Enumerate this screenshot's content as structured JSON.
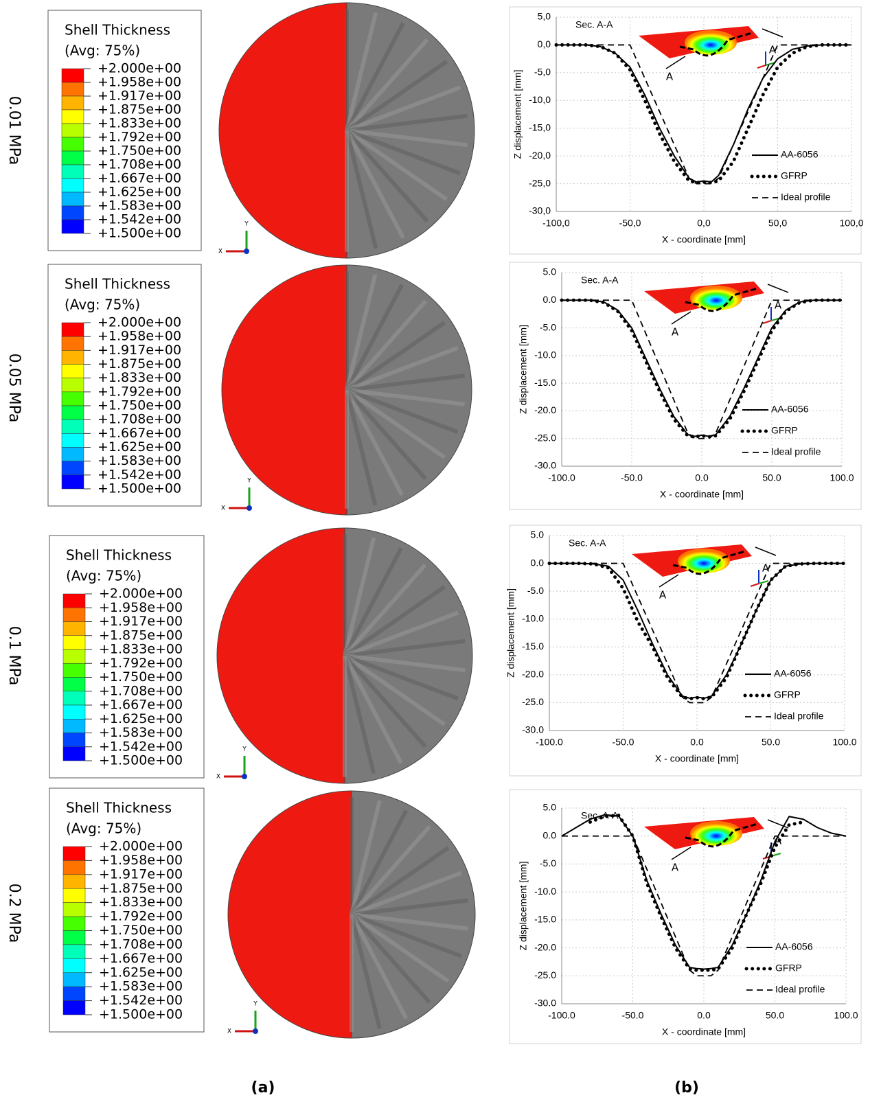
{
  "panels": [
    {
      "pressure": "0.01 MPa",
      "legend_title": "Shell Thickness",
      "legend_subtitle": "(Avg: 75%)"
    },
    {
      "pressure": "0.05 MPa",
      "legend_title": "Shell Thickness",
      "legend_subtitle": "(Avg: 75%)"
    },
    {
      "pressure": "0.1 MPa",
      "legend_title": "Shell Thickness",
      "legend_subtitle": "(Avg: 75%)"
    },
    {
      "pressure": "0.2 MPa",
      "legend_title": "Shell Thickness",
      "legend_subtitle": "(Avg: 75%)"
    }
  ],
  "contour_levels": [
    "+2.000e+00",
    "+1.958e+00",
    "+1.917e+00",
    "+1.875e+00",
    "+1.833e+00",
    "+1.792e+00",
    "+1.750e+00",
    "+1.708e+00",
    "+1.667e+00",
    "+1.625e+00",
    "+1.583e+00",
    "+1.542e+00",
    "+1.500e+00"
  ],
  "contour_colors": [
    "#ff0000",
    "#ff7300",
    "#ffb400",
    "#ffff00",
    "#b9ff00",
    "#46ff00",
    "#00ff46",
    "#00ffb9",
    "#00ffff",
    "#00b9ff",
    "#0046ff",
    "#0000ff"
  ],
  "triad": {
    "x": "X",
    "y": "Y"
  },
  "captions": [
    "(a)",
    "(b)"
  ],
  "chart_data": [
    {
      "type": "line",
      "x_label": "X - coordinate [mm]",
      "y_label": "Z displacement [mm]",
      "section_label": "Sec. A-A",
      "section_markers": [
        "A",
        "A"
      ],
      "grid": true,
      "x": [
        -100,
        -90,
        -80,
        -70,
        -60,
        -50,
        -40,
        -30,
        -20,
        -10,
        -5,
        0,
        5,
        10,
        20,
        30,
        40,
        50,
        60,
        70,
        80,
        90,
        100
      ],
      "xlim": [
        -100,
        100
      ],
      "ylim": [
        -30,
        5
      ],
      "xticks": [
        {
          "value": -100,
          "label": "-100,0"
        },
        {
          "value": -50,
          "label": "-50,0"
        },
        {
          "value": 0,
          "label": "0,0"
        },
        {
          "value": 50,
          "label": "50,0"
        },
        {
          "value": 100,
          "label": "100,0"
        }
      ],
      "yticks": [
        {
          "value": 5,
          "label": "5,0"
        },
        {
          "value": 0,
          "label": "0,0"
        },
        {
          "value": -5,
          "label": "-5,0"
        },
        {
          "value": -10,
          "label": "-10,0"
        },
        {
          "value": -15,
          "label": "-15,0"
        },
        {
          "value": -20,
          "label": "-20,0"
        },
        {
          "value": -25,
          "label": "-25,0"
        },
        {
          "value": -30,
          "label": "-30,0"
        }
      ],
      "series": [
        {
          "name": "AA-6056",
          "color": "#000000",
          "style": "solid",
          "values": [
            0,
            0,
            0,
            -0.3,
            -1.5,
            -4,
            -9,
            -15,
            -20,
            -24,
            -24.7,
            -24.5,
            -24.7,
            -23.5,
            -18,
            -11.5,
            -6,
            -2.5,
            -0.8,
            -0.2,
            0,
            0,
            0
          ]
        },
        {
          "name": "GFRP",
          "color": "#000000",
          "style": "dotted",
          "values": [
            0,
            0,
            0,
            -0.3,
            -1.5,
            -4.5,
            -10,
            -16,
            -21,
            -24.5,
            -24.8,
            -24.7,
            -24.8,
            -24.5,
            -21,
            -15,
            -9,
            -4,
            -1.5,
            -0.3,
            0,
            0,
            0
          ]
        },
        {
          "name": "Ideal profile",
          "color": "#000000",
          "style": "dashed",
          "values": [
            0,
            0,
            0,
            0,
            0,
            0,
            -6,
            -12,
            -18,
            -24,
            -25,
            -25,
            -25,
            -24,
            -18,
            -12,
            -6,
            0,
            0,
            0,
            0,
            0,
            0
          ]
        }
      ]
    },
    {
      "type": "line",
      "x_label": "X - coordinate [mm]",
      "y_label": "Z displacement [mm]",
      "section_label": "Sec. A-A",
      "section_markers": [
        "A",
        "A"
      ],
      "grid": true,
      "x": [
        -100,
        -90,
        -80,
        -70,
        -60,
        -50,
        -40,
        -30,
        -20,
        -10,
        -5,
        0,
        5,
        10,
        20,
        30,
        40,
        50,
        60,
        70,
        80,
        90,
        100
      ],
      "xlim": [
        -100,
        100
      ],
      "ylim": [
        -30,
        5
      ],
      "xticks": [
        {
          "value": -100,
          "label": "-100.0"
        },
        {
          "value": -50,
          "label": "-50.0"
        },
        {
          "value": 0,
          "label": "0.0"
        },
        {
          "value": 50,
          "label": "50.0"
        },
        {
          "value": 100,
          "label": "100.0"
        }
      ],
      "yticks": [
        {
          "value": 5,
          "label": "5.0"
        },
        {
          "value": 0,
          "label": "0.0"
        },
        {
          "value": -5,
          "label": "-5.0"
        },
        {
          "value": -10,
          "label": "-10.0"
        },
        {
          "value": -15,
          "label": "-15.0"
        },
        {
          "value": -20,
          "label": "-20.0"
        },
        {
          "value": -25,
          "label": "-25.0"
        },
        {
          "value": -30,
          "label": "-30.0"
        }
      ],
      "series": [
        {
          "name": "AA-6056",
          "color": "#000000",
          "style": "solid",
          "values": [
            0,
            0,
            0,
            -0.3,
            -1.8,
            -5,
            -10.5,
            -16,
            -21,
            -24.3,
            -24.6,
            -24.4,
            -24.6,
            -24.3,
            -21,
            -16,
            -10.5,
            -5,
            -1.8,
            -0.3,
            0,
            0,
            0
          ]
        },
        {
          "name": "GFRP",
          "color": "#000000",
          "style": "dotted",
          "values": [
            0,
            0,
            0,
            -0.4,
            -2,
            -5.5,
            -11,
            -16.5,
            -21.5,
            -24.5,
            -24.7,
            -24.5,
            -24.7,
            -24.5,
            -21.5,
            -16.5,
            -11,
            -5.5,
            -2,
            -0.4,
            0,
            0,
            0
          ]
        },
        {
          "name": "Ideal profile",
          "color": "#000000",
          "style": "dashed",
          "values": [
            0,
            0,
            0,
            0,
            0,
            0,
            -6,
            -12,
            -18,
            -24,
            -25,
            -25,
            -25,
            -24,
            -18,
            -12,
            -6,
            0,
            0,
            0,
            0,
            0,
            0
          ]
        }
      ]
    },
    {
      "type": "line",
      "x_label": "X - coordinate [mm]",
      "y_label": "Z displacement [mm]",
      "section_label": "Sec. A-A",
      "section_markers": [
        "A",
        "A"
      ],
      "grid": true,
      "x": [
        -100,
        -90,
        -80,
        -70,
        -60,
        -50,
        -40,
        -30,
        -20,
        -10,
        -5,
        0,
        5,
        10,
        20,
        30,
        40,
        50,
        60,
        70,
        80,
        90,
        100
      ],
      "xlim": [
        -100,
        100
      ],
      "ylim": [
        -30,
        5
      ],
      "xticks": [
        {
          "value": -100,
          "label": "-100.0"
        },
        {
          "value": -50,
          "label": "-50.0"
        },
        {
          "value": 0,
          "label": "0.0"
        },
        {
          "value": 50,
          "label": "50.0"
        },
        {
          "value": 100,
          "label": "100.0"
        }
      ],
      "yticks": [
        {
          "value": 5,
          "label": "5.0"
        },
        {
          "value": 0,
          "label": "0.0"
        },
        {
          "value": -5,
          "label": "-5.0"
        },
        {
          "value": -10,
          "label": "-10.0"
        },
        {
          "value": -15,
          "label": "-15.0"
        },
        {
          "value": -20,
          "label": "-20.0"
        },
        {
          "value": -25,
          "label": "-25.0"
        },
        {
          "value": -30,
          "label": "-30.0"
        }
      ],
      "series": [
        {
          "name": "AA-6056",
          "color": "#000000",
          "style": "solid",
          "values": [
            0,
            0,
            0,
            -0.1,
            -0.5,
            -3,
            -8.5,
            -14.5,
            -20,
            -23.8,
            -24.2,
            -24,
            -24.2,
            -23.8,
            -20,
            -14.5,
            -8.5,
            -3,
            -0.5,
            -0.1,
            0,
            0,
            0
          ]
        },
        {
          "name": "GFRP",
          "color": "#000000",
          "style": "dotted",
          "values": [
            0,
            0,
            0,
            -0.1,
            -0.8,
            -4.5,
            -10.5,
            -15,
            -20.5,
            -24,
            -24.3,
            -24.1,
            -24.3,
            -24,
            -20.5,
            -14.5,
            -8.5,
            -3,
            -0.5,
            -0.1,
            0,
            0,
            0
          ]
        },
        {
          "name": "Ideal profile",
          "color": "#000000",
          "style": "dashed",
          "values": [
            0,
            0,
            0,
            0,
            0,
            0,
            -6,
            -12,
            -18,
            -24,
            -25,
            -25,
            -25,
            -24,
            -18,
            -12,
            -6,
            0,
            0,
            0,
            0,
            0,
            0
          ]
        }
      ]
    },
    {
      "type": "line",
      "x_label": "X - coordinate [mm]",
      "y_label": "Z displacement [mm]",
      "section_label": "Sec. A-A",
      "section_markers": [
        "A",
        "A"
      ],
      "grid": true,
      "x": [
        -100,
        -90,
        -80,
        -70,
        -60,
        -50,
        -40,
        -30,
        -20,
        -10,
        -5,
        0,
        5,
        10,
        20,
        30,
        40,
        50,
        60,
        70,
        80,
        90,
        100
      ],
      "xlim": [
        -100,
        100
      ],
      "ylim": [
        -30,
        5
      ],
      "xticks": [
        {
          "value": -100,
          "label": "-100.0"
        },
        {
          "value": -50,
          "label": "-50.0"
        },
        {
          "value": 0,
          "label": "0.0"
        },
        {
          "value": 50,
          "label": "50.0"
        },
        {
          "value": 100,
          "label": "100.0"
        }
      ],
      "yticks": [
        {
          "value": 5,
          "label": "5.0"
        },
        {
          "value": 0,
          "label": "0.0"
        },
        {
          "value": -5,
          "label": "-5.0"
        },
        {
          "value": -10,
          "label": "-10.0"
        },
        {
          "value": -15,
          "label": "-15.0"
        },
        {
          "value": -20,
          "label": "-20.0"
        },
        {
          "value": -25,
          "label": "-25.0"
        },
        {
          "value": -30,
          "label": "-30.0"
        }
      ],
      "series": [
        {
          "name": "AA-6056",
          "color": "#000000",
          "style": "solid",
          "values": [
            0,
            1.5,
            3,
            3.8,
            3.6,
            0,
            -8,
            -14,
            -19.5,
            -23.5,
            -23.7,
            -23.8,
            -23.7,
            -23.5,
            -19.5,
            -14,
            -8,
            -1,
            3.5,
            3,
            1.5,
            0.5,
            0
          ]
        },
        {
          "name": "GFRP",
          "color": "#000000",
          "style": "dotted",
          "values": [
            null,
            null,
            2.5,
            3.5,
            3.7,
            0,
            -8.5,
            -14.5,
            -20,
            -23.8,
            -24,
            -24,
            -24,
            -23.8,
            -20,
            -14,
            -8.5,
            -2,
            2,
            2.5,
            null,
            null,
            null
          ]
        },
        {
          "name": "Ideal profile",
          "color": "#000000",
          "style": "dashed",
          "values": [
            0,
            0,
            0,
            0,
            0,
            0,
            -6,
            -12,
            -18,
            -24,
            -25,
            -25,
            -25,
            -24,
            -18,
            -12,
            -6,
            0,
            0,
            0,
            0,
            0,
            0
          ]
        }
      ]
    }
  ]
}
